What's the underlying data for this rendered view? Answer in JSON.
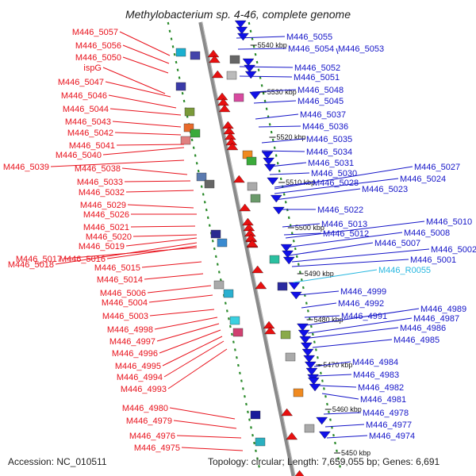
{
  "title": "Methylobacterium sp. 4-46, complete genome",
  "footer": {
    "accession": "Accession: NC_010511",
    "topology": "Topology: circular; Length: 7,659,055 bp; Genes: 6,691"
  },
  "colors": {
    "left_label": "#e8121c",
    "right_label": "#1414c8",
    "rna_label": "#27b7e0",
    "backbone": "#8a8a8a",
    "ruler_dash": "#2a8a2a"
  },
  "ruler_ticks": [
    "5540 kbp",
    "5530 kbp",
    "5520 kbp",
    "5510 kbp",
    "5500 kbp",
    "5490 kbp",
    "5480 kbp",
    "5470 kbp",
    "5460 kbp",
    "5450 kbp"
  ],
  "left_genes": [
    "M446_5057",
    "M446_5056",
    "M446_5050",
    "ispG",
    "M446_5047",
    "M446_5046",
    "M446_5044",
    "M446_5043",
    "M446_5042",
    "M446_5041",
    "M446_5040",
    "M446_5039",
    "M446_5038",
    "M446_5033",
    "M446_5032",
    "M446_5029",
    "M446_5026",
    "M446_5021",
    "M446_5020",
    "M446_5019",
    "M446_5018",
    "M446_5017",
    "M446_5016",
    "M446_5015",
    "M446_5014",
    "M446_5006",
    "M446_5004",
    "M446_5003",
    "M446_4998",
    "M446_4997",
    "M446_4996",
    "M446_4995",
    "M446_4994",
    "M446_4993",
    "M446_4980",
    "M446_4979",
    "M446_4976",
    "M446_4975"
  ],
  "right_genes": [
    "M446_5055",
    "M446_5054",
    "M446_5053",
    "M446_5052",
    "M446_5051",
    "M446_5048",
    "M446_5045",
    "M446_5037",
    "M446_5036",
    "M446_5035",
    "M446_5034",
    "M446_5031",
    "M446_5030",
    "M446_5028",
    "M446_5027",
    "M446_5024",
    "M446_5023",
    "M446_5022",
    "M446_5013",
    "M446_5012",
    "M446_5010",
    "M446_5008",
    "M446_5007",
    "M446_5002",
    "M446_5001",
    "M446_R0055",
    "M446_4999",
    "M446_4992",
    "M446_4991",
    "M446_4989",
    "M446_4987",
    "M446_4986",
    "M446_4985",
    "M446_4984",
    "M446_4983",
    "M446_4982",
    "M446_4981",
    "M446_4978",
    "M446_4977",
    "M446_4974"
  ]
}
